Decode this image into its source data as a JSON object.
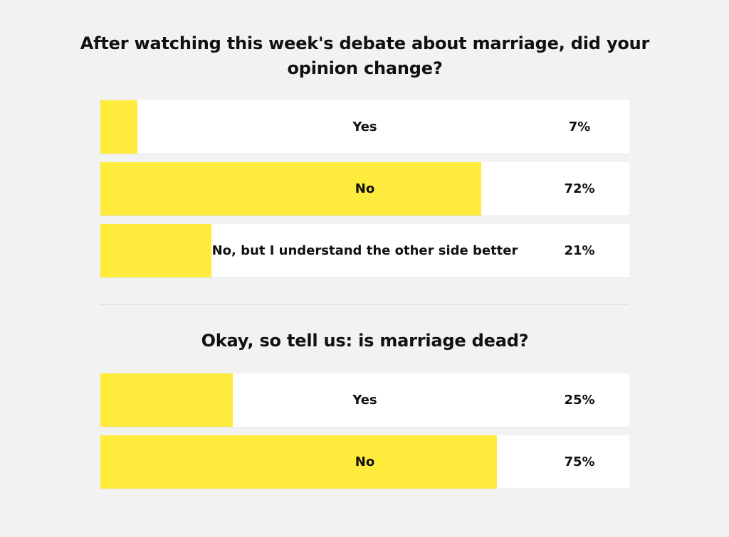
{
  "chart_data": [
    {
      "type": "bar",
      "orientation": "horizontal",
      "title": "After watching this week's debate about marriage, did your opinion change?",
      "categories": [
        "Yes",
        "No",
        "No, but I understand the other side better"
      ],
      "values": [
        7,
        72,
        21
      ],
      "value_labels": [
        "7%",
        "72%",
        "21%"
      ],
      "unit": "%",
      "xlim": [
        0,
        100
      ]
    },
    {
      "type": "bar",
      "orientation": "horizontal",
      "title": "Okay, so tell us: is marriage dead?",
      "categories": [
        "Yes",
        "No"
      ],
      "values": [
        25,
        75
      ],
      "value_labels": [
        "25%",
        "75%"
      ],
      "unit": "%",
      "xlim": [
        0,
        100
      ]
    }
  ],
  "colors": {
    "bar_fill": "#ffeb3b",
    "track": "#ffffff",
    "background": "#f2f2f2"
  }
}
